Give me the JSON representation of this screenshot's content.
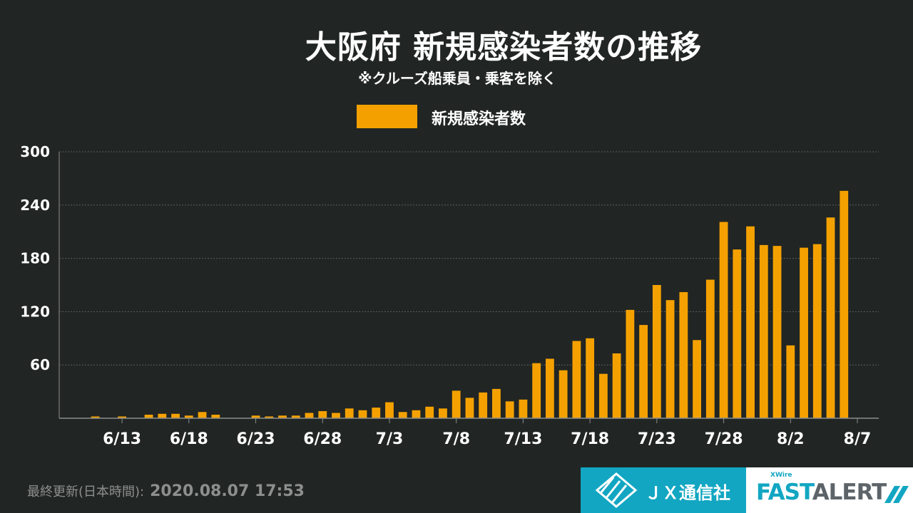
{
  "chart_data": {
    "type": "bar",
    "title": "大阪府  新規感染者数の推移",
    "subtitle": "※クルーズ船乗員・乗客を除く",
    "legend": [
      "新規感染者数"
    ],
    "legend_position": "top",
    "series_color": "#f4a100",
    "background_color": "#212524",
    "ylim": [
      0,
      300
    ],
    "yticks": [
      60,
      120,
      180,
      240,
      300
    ],
    "grid": true,
    "xtick_labels": [
      "6/13",
      "6/18",
      "6/23",
      "6/28",
      "7/3",
      "7/8",
      "7/13",
      "7/18",
      "7/23",
      "7/28",
      "8/2",
      "8/7"
    ],
    "xtick_indices": [
      2,
      7,
      12,
      17,
      22,
      27,
      32,
      37,
      42,
      47,
      52,
      57
    ],
    "categories": [
      "6/11",
      "6/12",
      "6/13",
      "6/14",
      "6/15",
      "6/16",
      "6/17",
      "6/18",
      "6/19",
      "6/20",
      "6/21",
      "6/22",
      "6/23",
      "6/24",
      "6/25",
      "6/26",
      "6/27",
      "6/28",
      "6/29",
      "6/30",
      "7/1",
      "7/2",
      "7/3",
      "7/4",
      "7/5",
      "7/6",
      "7/7",
      "7/8",
      "7/9",
      "7/10",
      "7/11",
      "7/12",
      "7/13",
      "7/14",
      "7/15",
      "7/16",
      "7/17",
      "7/18",
      "7/19",
      "7/20",
      "7/21",
      "7/22",
      "7/23",
      "7/24",
      "7/25",
      "7/26",
      "7/27",
      "7/28",
      "7/29",
      "7/30",
      "7/31",
      "8/1",
      "8/2",
      "8/3",
      "8/4",
      "8/5",
      "8/6",
      "8/7"
    ],
    "values": [
      2,
      0,
      2,
      0,
      4,
      5,
      5,
      3,
      7,
      4,
      0,
      0,
      3,
      2,
      3,
      3,
      6,
      8,
      6,
      11,
      9,
      12,
      18,
      7,
      9,
      13,
      11,
      31,
      23,
      29,
      33,
      19,
      21,
      62,
      67,
      54,
      87,
      90,
      50,
      73,
      122,
      105,
      150,
      133,
      142,
      88,
      156,
      221,
      190,
      216,
      195,
      194,
      82,
      192,
      196,
      226,
      256,
      0
    ]
  },
  "footer": {
    "label": "最終更新(日本時間):",
    "timestamp": "2020.08.07 17:53"
  },
  "branding": {
    "jx_name": "ＪＸ通信社",
    "fast_small": "XWire",
    "fast_part1": "FAST",
    "fast_part2": "ALERT"
  }
}
